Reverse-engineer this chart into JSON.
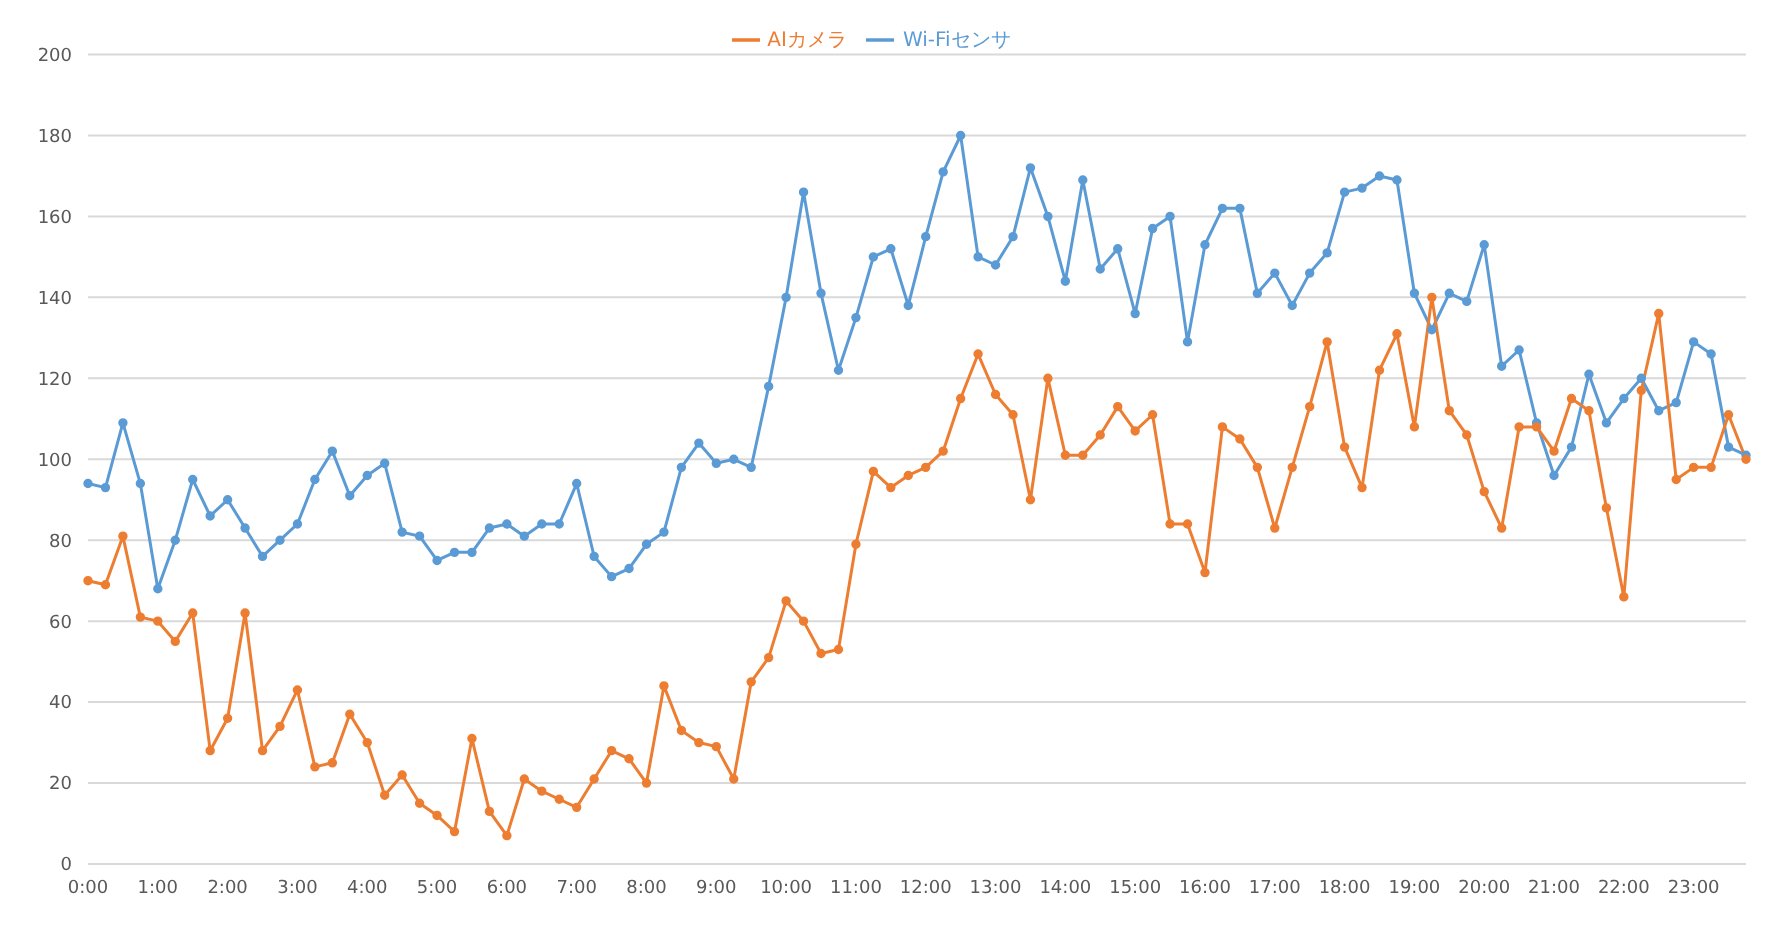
{
  "chart_data": {
    "type": "line",
    "categories": [
      "0:00",
      null,
      null,
      null,
      "1:00",
      null,
      null,
      null,
      "2:00",
      null,
      null,
      null,
      "3:00",
      null,
      null,
      null,
      "4:00",
      null,
      null,
      null,
      "5:00",
      null,
      null,
      null,
      "6:00",
      null,
      null,
      null,
      "7:00",
      null,
      null,
      null,
      "8:00",
      null,
      null,
      null,
      "9:00",
      null,
      null,
      null,
      "10:00",
      null,
      null,
      null,
      "11:00",
      null,
      null,
      null,
      "12:00",
      null,
      null,
      null,
      "13:00",
      null,
      null,
      null,
      "14:00",
      null,
      null,
      null,
      "15:00",
      null,
      null,
      null,
      "16:00",
      null,
      null,
      null,
      "17:00",
      null,
      null,
      null,
      "18:00",
      null,
      null,
      null,
      "19:00",
      null,
      null,
      null,
      "20:00",
      null,
      null,
      null,
      "21:00",
      null,
      null,
      null,
      "22:00",
      null,
      null,
      null,
      "23:00",
      null,
      null,
      null
    ],
    "series": [
      {
        "name": "Wi-Fiセンサ",
        "color": "#5b9bd5",
        "values": [
          94,
          93,
          109,
          94,
          68,
          80,
          95,
          86,
          90,
          83,
          76,
          80,
          84,
          95,
          102,
          91,
          96,
          99,
          82,
          81,
          75,
          77,
          77,
          83,
          84,
          81,
          84,
          84,
          94,
          76,
          71,
          73,
          79,
          82,
          98,
          104,
          99,
          100,
          98,
          118,
          140,
          166,
          141,
          122,
          135,
          150,
          152,
          138,
          155,
          171,
          180,
          150,
          148,
          155,
          172,
          160,
          144,
          169,
          147,
          152,
          136,
          157,
          160,
          129,
          153,
          162,
          162,
          141,
          146,
          138,
          146,
          151,
          166,
          167,
          170,
          169,
          141,
          132,
          141,
          139,
          153,
          123,
          127,
          109,
          96,
          103,
          121,
          109,
          115,
          120,
          112,
          114,
          129,
          126,
          103,
          101
        ]
      },
      {
        "name": "AIカメラ",
        "color": "#ed7d31",
        "values": [
          70,
          69,
          81,
          61,
          60,
          55,
          62,
          28,
          36,
          62,
          28,
          34,
          43,
          24,
          25,
          37,
          30,
          17,
          22,
          15,
          12,
          8,
          31,
          13,
          7,
          21,
          18,
          16,
          14,
          21,
          28,
          26,
          20,
          44,
          33,
          30,
          29,
          21,
          45,
          51,
          65,
          60,
          52,
          53,
          79,
          97,
          93,
          96,
          98,
          102,
          115,
          126,
          116,
          111,
          90,
          120,
          101,
          101,
          106,
          113,
          107,
          111,
          84,
          84,
          72,
          108,
          105,
          98,
          83,
          98,
          113,
          129,
          103,
          93,
          122,
          131,
          108,
          140,
          112,
          106,
          92,
          83,
          108,
          108,
          102,
          115,
          112,
          88,
          66,
          117,
          136,
          95,
          98,
          98,
          111,
          100
        ]
      }
    ],
    "ylim": [
      0,
      200
    ],
    "yticks": [
      0,
      20,
      40,
      60,
      80,
      100,
      120,
      140,
      160,
      180,
      200
    ],
    "grid": "y",
    "legend": "top",
    "marker": "circle",
    "line_style": "solid"
  }
}
